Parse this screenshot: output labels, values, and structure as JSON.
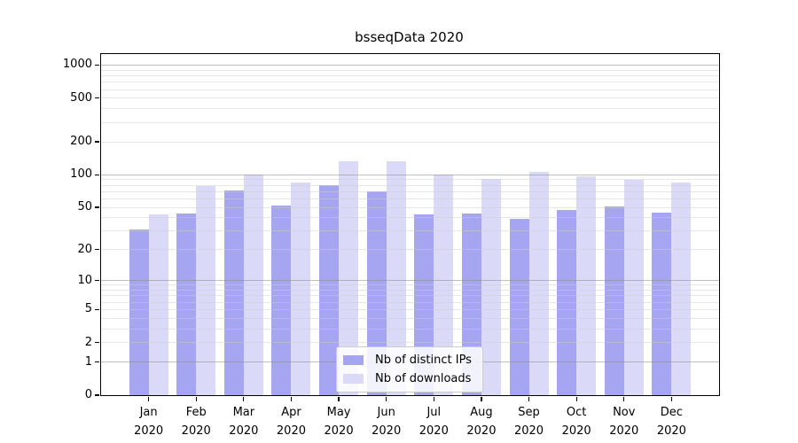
{
  "title": "bsseqData 2020",
  "chart_data": {
    "type": "bar",
    "title": "bsseqData 2020",
    "categories": [
      "Jan",
      "Feb",
      "Mar",
      "Apr",
      "May",
      "Jun",
      "Jul",
      "Aug",
      "Sep",
      "Oct",
      "Nov",
      "Dec"
    ],
    "xtick_second_line": "2020",
    "series": [
      {
        "name": "Nb of distinct IPs",
        "color": "#a5a5f1",
        "values": [
          31,
          44,
          72,
          52,
          80,
          70,
          43,
          44,
          39,
          47,
          51,
          45
        ]
      },
      {
        "name": "Nb of downloads",
        "color": "#dadaf8",
        "values": [
          43,
          78,
          100,
          85,
          133,
          133,
          100,
          91,
          107,
          97,
          90,
          84
        ]
      }
    ],
    "yscale": "log1p",
    "yticks": [
      1000,
      500,
      200,
      100,
      50,
      20,
      10,
      5,
      2,
      1,
      0
    ],
    "ylim": [
      0,
      1260
    ],
    "grid": "on",
    "grid_above_bars": true,
    "legend_position": "bottom-center"
  },
  "colors": {
    "background": "#ffffff",
    "axis": "#000000",
    "major_grid": "#c6c6c6",
    "minor_grid": "#ededed",
    "text": "#000000"
  }
}
